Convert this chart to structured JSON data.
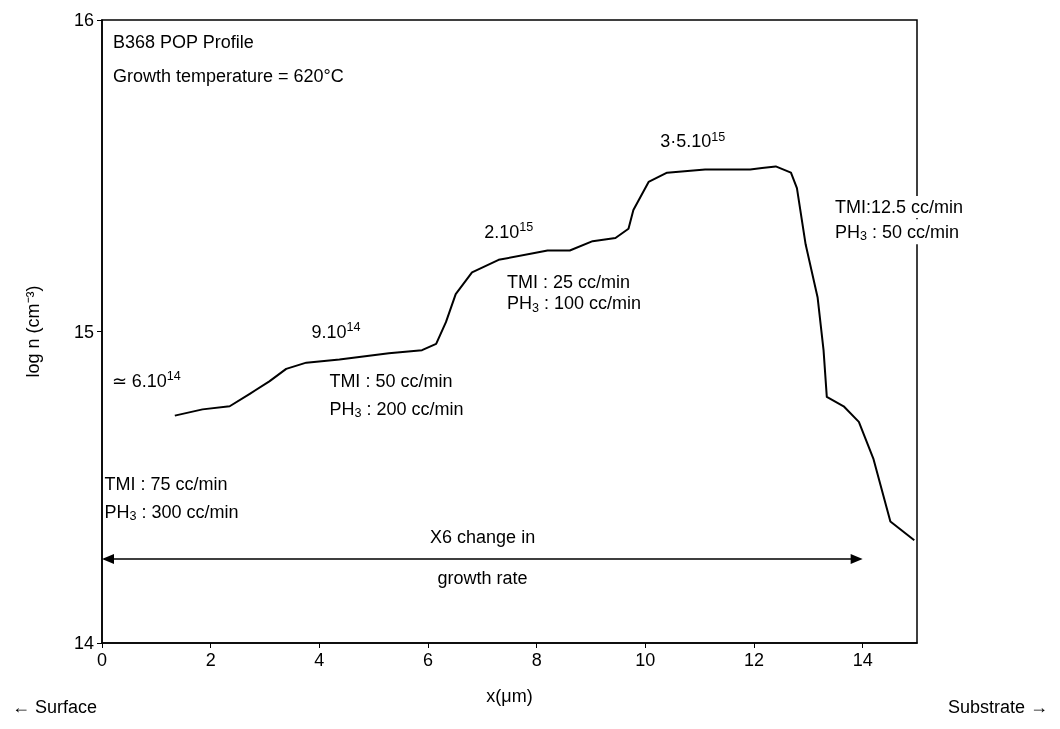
{
  "chart_data": {
    "type": "line",
    "title": "B368 POP Profile",
    "subtitle": "Growth temperature = 620°C",
    "xlabel": "x(μm)",
    "ylabel": "log n (cm⁻³)",
    "xlim": [
      0,
      15
    ],
    "xticks": [
      0,
      2,
      4,
      6,
      8,
      10,
      12,
      14
    ],
    "ylim": [
      14,
      16
    ],
    "yticks": [
      14,
      15,
      16
    ],
    "grid": false,
    "marker": "none",
    "line_style": "solid",
    "series": [
      {
        "color": "#000000",
        "x": [
          1.34,
          1.85,
          2.35,
          2.72,
          3.08,
          3.39,
          3.76,
          4.37,
          5.28,
          5.89,
          6.15,
          6.33,
          6.51,
          6.81,
          7.3,
          8.2,
          8.61,
          9.03,
          9.45,
          9.69,
          9.78,
          10.06,
          10.4,
          11.1,
          11.93,
          12.4,
          12.68,
          12.79,
          12.95,
          13.17,
          13.28,
          13.34,
          13.65,
          13.93,
          14.2,
          14.51,
          14.95
        ],
        "values": [
          14.73,
          14.75,
          14.76,
          14.8,
          14.84,
          14.88,
          14.9,
          14.91,
          14.93,
          14.94,
          14.96,
          15.03,
          15.12,
          15.19,
          15.23,
          15.26,
          15.26,
          15.29,
          15.3,
          15.33,
          15.39,
          15.48,
          15.51,
          15.52,
          15.52,
          15.53,
          15.51,
          15.46,
          15.28,
          15.11,
          14.94,
          14.79,
          14.76,
          14.71,
          14.59,
          14.39,
          14.33
        ]
      }
    ],
    "annotations": [
      "≃ 6.10$^{14}$",
      "TMI : 75 cc/min",
      "PH$_{3}$ : 300 cc/min",
      "9.10$^{14}$",
      "TMI : 50 cc/min",
      "PH$_{3}$ : 200 cc/min",
      "2.10$^{15}$",
      "TMI : 25 cc/min",
      "PH$_{3}$ : 100 cc/min",
      "3·5.10$^{15}$",
      "TMI:12.5 cc/min",
      "PH$_{3}$ : 50 cc/min",
      "X6 change in",
      "growth rate",
      "← Surface",
      "Substrate →"
    ]
  }
}
